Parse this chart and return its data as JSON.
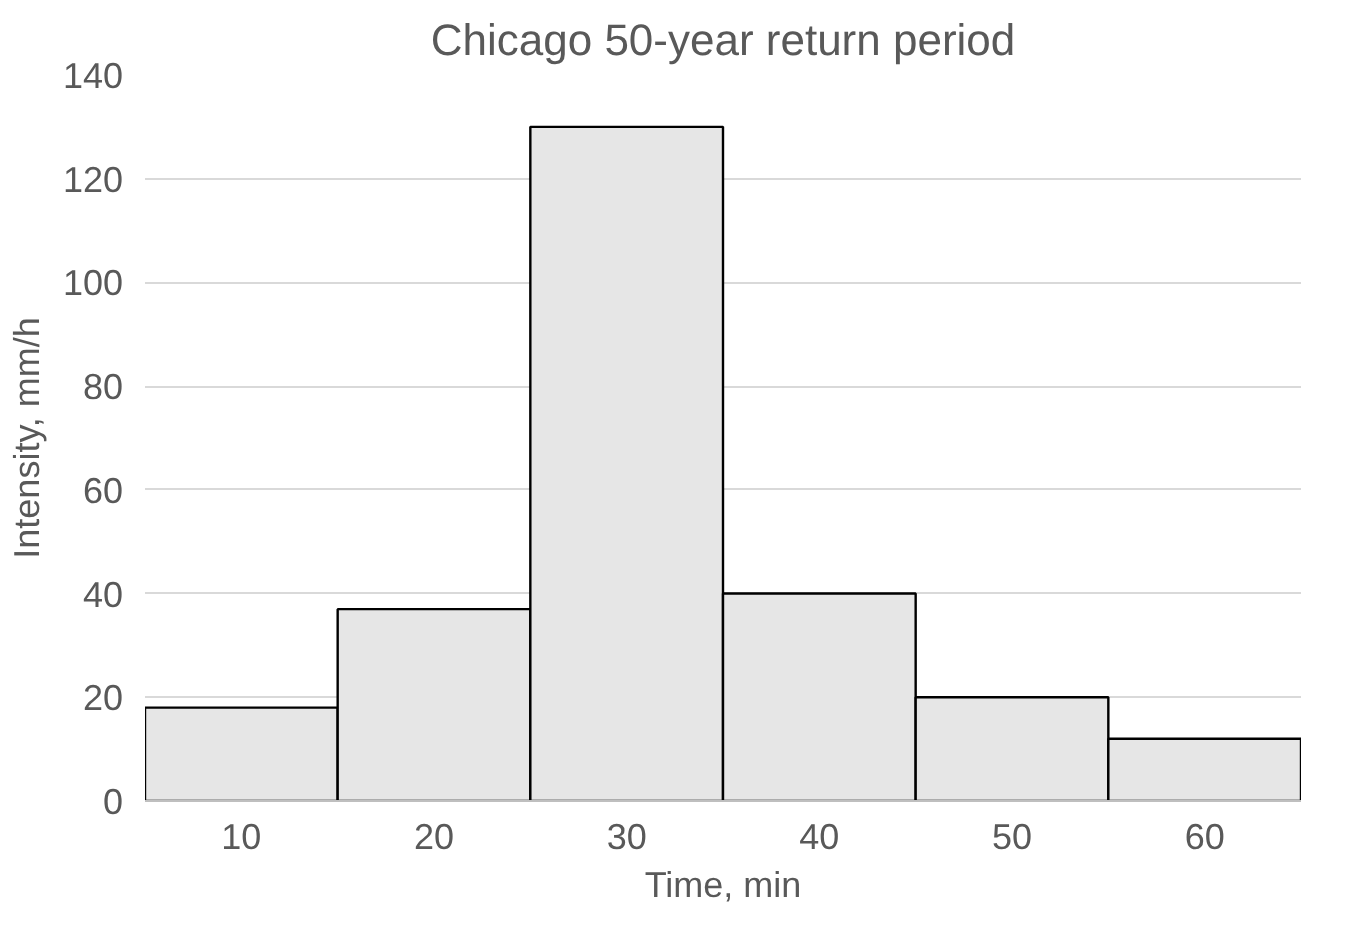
{
  "chart_data": {
    "type": "bar",
    "title": "Chicago 50-year return period",
    "xlabel": "Time, min",
    "ylabel": "Intensity, mm/h",
    "categories": [
      "10",
      "20",
      "30",
      "40",
      "50",
      "60"
    ],
    "values": [
      18,
      37,
      130,
      40,
      20,
      12
    ],
    "color": "#e6e6e6",
    "ylim": [
      0,
      140
    ],
    "yticks": [
      0,
      20,
      40,
      60,
      80,
      100,
      120,
      140
    ],
    "grid": "y"
  }
}
